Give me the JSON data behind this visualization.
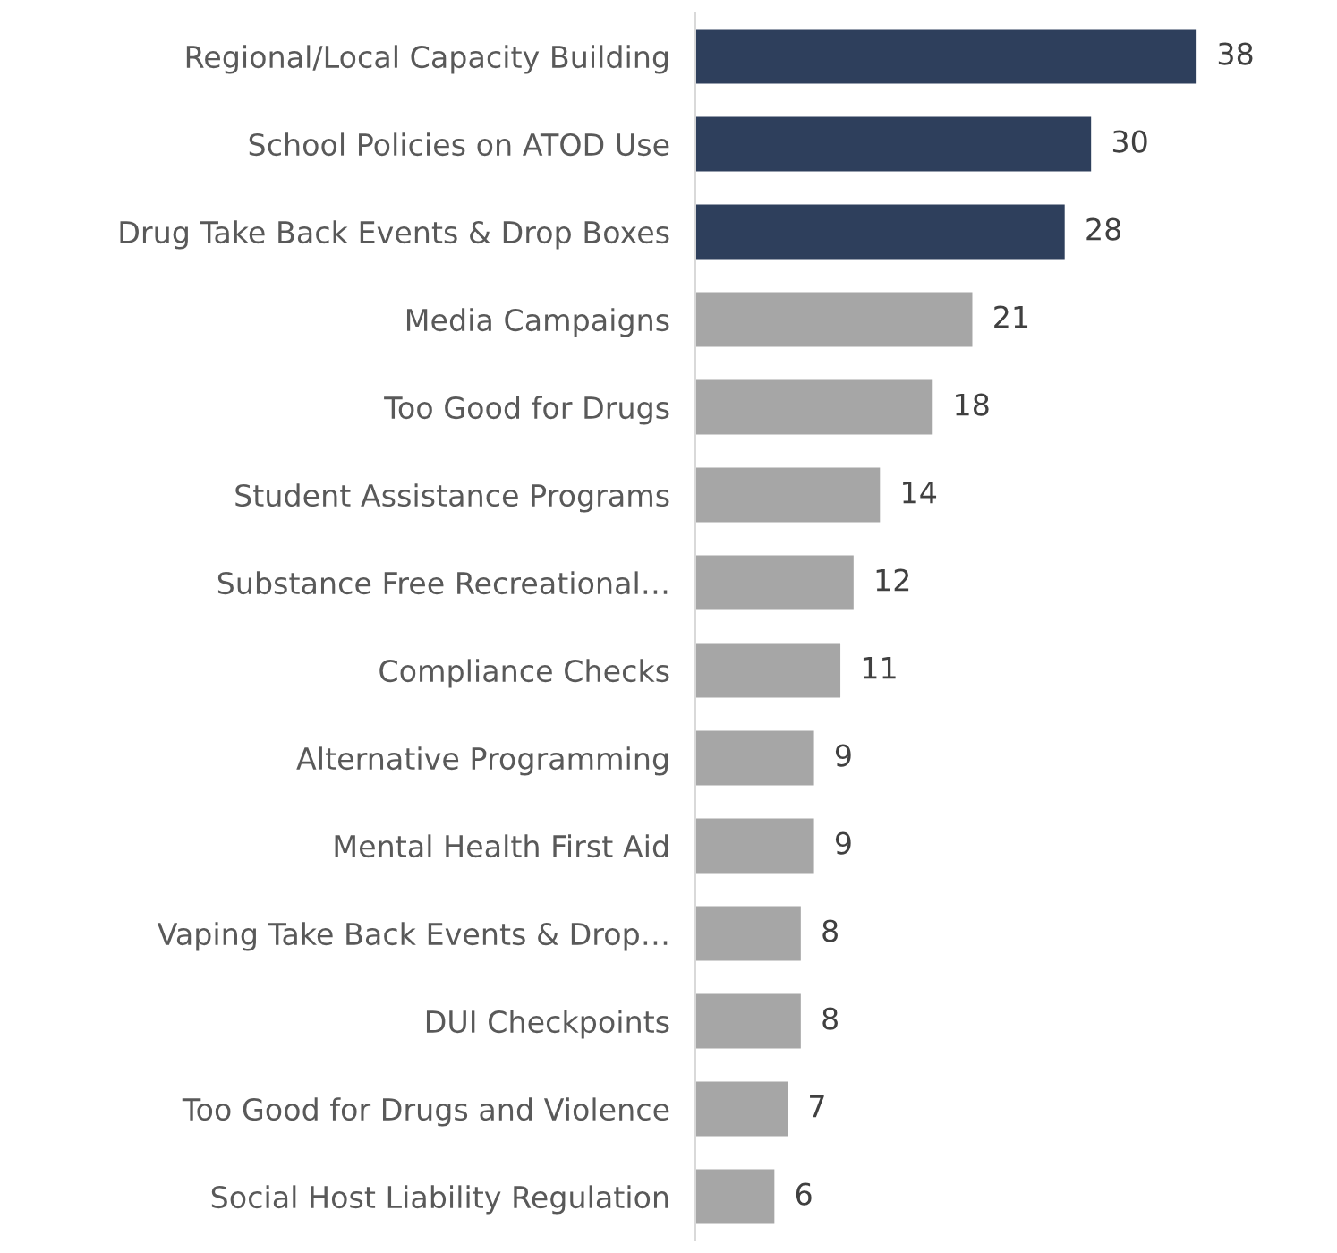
{
  "chart_data": {
    "type": "bar",
    "orientation": "horizontal",
    "categories": [
      "Regional/Local Capacity Building",
      "School Policies on ATOD Use",
      "Drug Take Back Events & Drop Boxes",
      "Media Campaigns",
      "Too Good for Drugs",
      "Student Assistance Programs",
      "Substance Free Recreational…",
      "Compliance Checks",
      "Alternative Programming",
      "Mental Health First Aid",
      "Vaping Take Back Events & Drop…",
      "DUI Checkpoints",
      "Too Good for Drugs and Violence",
      "Social Host Liability Regulation"
    ],
    "values": [
      38,
      30,
      28,
      21,
      18,
      14,
      12,
      11,
      9,
      9,
      8,
      8,
      7,
      6
    ],
    "colors": [
      "#2e3f5c",
      "#2e3f5c",
      "#2e3f5c",
      "#a6a6a6",
      "#a6a6a6",
      "#a6a6a6",
      "#a6a6a6",
      "#a6a6a6",
      "#a6a6a6",
      "#a6a6a6",
      "#a6a6a6",
      "#a6a6a6",
      "#a6a6a6",
      "#a6a6a6"
    ],
    "data_labels": true,
    "tick_labels": "y",
    "grid": false,
    "legend": false
  }
}
